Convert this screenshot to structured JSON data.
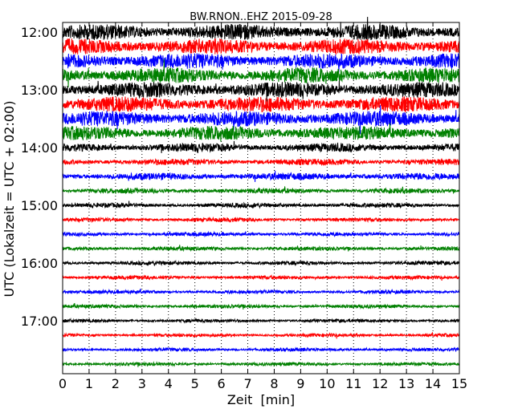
{
  "chart_data": {
    "type": "line",
    "title": "BW.RNON..EHZ 2015-09-28",
    "xlabel": "Zeit  [min]",
    "ylabel": "UTC (Lokalzeit = UTC + 02:00)",
    "xlim": [
      0,
      15
    ],
    "x_ticks": [
      0,
      1,
      2,
      3,
      4,
      5,
      6,
      7,
      8,
      9,
      10,
      11,
      12,
      13,
      14,
      15
    ],
    "x_tick_labels": [
      "0",
      "1",
      "2",
      "3",
      "4",
      "5",
      "6",
      "7",
      "8",
      "9",
      "10",
      "11",
      "12",
      "13",
      "14",
      "15"
    ],
    "y_tick_labels": [
      "12:00",
      "13:00",
      "14:00",
      "15:00",
      "16:00",
      "17:00"
    ],
    "y_ticks_trace_index": [
      0,
      4,
      8,
      12,
      16,
      20
    ],
    "grid": "vertical dotted",
    "trace_interval_min": 15,
    "trace_colors": [
      "#000000",
      "#ff0000",
      "#0000ff",
      "#008000"
    ],
    "series": [
      {
        "start": "12:00",
        "amplitude": 0.55
      },
      {
        "start": "12:15",
        "amplitude": 0.55
      },
      {
        "start": "12:30",
        "amplitude": 0.55
      },
      {
        "start": "12:45",
        "amplitude": 0.55
      },
      {
        "start": "13:00",
        "amplitude": 0.55
      },
      {
        "start": "13:15",
        "amplitude": 0.55
      },
      {
        "start": "13:30",
        "amplitude": 0.55
      },
      {
        "start": "13:45",
        "amplitude": 0.5
      },
      {
        "start": "14:00",
        "amplitude": 0.3
      },
      {
        "start": "14:15",
        "amplitude": 0.22
      },
      {
        "start": "14:30",
        "amplitude": 0.25
      },
      {
        "start": "14:45",
        "amplitude": 0.18
      },
      {
        "start": "15:00",
        "amplitude": 0.16
      },
      {
        "start": "15:15",
        "amplitude": 0.14
      },
      {
        "start": "15:30",
        "amplitude": 0.14
      },
      {
        "start": "15:45",
        "amplitude": 0.14
      },
      {
        "start": "16:00",
        "amplitude": 0.14
      },
      {
        "start": "16:15",
        "amplitude": 0.13
      },
      {
        "start": "16:30",
        "amplitude": 0.13
      },
      {
        "start": "16:45",
        "amplitude": 0.13
      },
      {
        "start": "17:00",
        "amplitude": 0.12
      },
      {
        "start": "17:15",
        "amplitude": 0.12
      },
      {
        "start": "17:30",
        "amplitude": 0.12
      },
      {
        "start": "17:45",
        "amplitude": 0.12
      }
    ]
  }
}
